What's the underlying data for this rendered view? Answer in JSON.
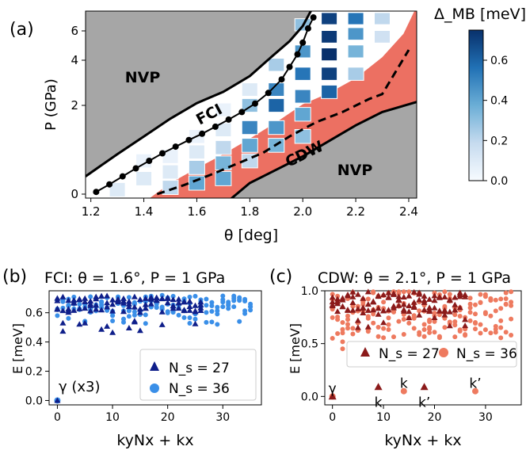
{
  "chart_data": [
    {
      "panel": "(a)",
      "type": "heatmap",
      "xlabel": "θ [deg]",
      "ylabel": "P (GPa)",
      "xlim": [
        1.18,
        2.43
      ],
      "x_ticks": [
        "1.2",
        "1.4",
        "1.6",
        "1.8",
        "2.0",
        "2.2",
        "2.4"
      ],
      "y_ticks": [
        "0",
        "2",
        "4",
        "6"
      ],
      "colorbar": {
        "label": "Δ_MB [meV]",
        "range": [
          0.0,
          0.75
        ],
        "ticks": [
          "0.0",
          "0.2",
          "0.4",
          "0.6"
        ],
        "colormap": "Blues"
      },
      "regions": [
        {
          "label": "NVP",
          "color": "#a6a6a6"
        },
        {
          "label": "FCI",
          "color": "#ffffff"
        },
        {
          "label": "CDW",
          "color": "#ec7062"
        },
        {
          "label": "NVP",
          "color": "#a6a6a6"
        }
      ],
      "fci_line": {
        "x": [
          1.22,
          1.27,
          1.32,
          1.37,
          1.42,
          1.47,
          1.52,
          1.57,
          1.62,
          1.67,
          1.72,
          1.77,
          1.82,
          1.87,
          1.92,
          1.95,
          1.98,
          2.0,
          2.02,
          2.04
        ],
        "y": [
          0.05,
          0.22,
          0.4,
          0.58,
          0.75,
          0.92,
          1.07,
          1.22,
          1.36,
          1.52,
          1.68,
          1.85,
          2.08,
          2.55,
          3.15,
          3.7,
          4.4,
          5.2,
          6.2,
          7.1
        ]
      },
      "cdw_dashed": {
        "x": [
          1.45,
          1.55,
          1.65,
          1.75,
          1.85,
          1.95,
          2.05,
          2.15,
          2.25,
          2.3,
          2.4
        ],
        "y": [
          0.0,
          0.2,
          0.43,
          0.68,
          0.93,
          1.3,
          1.62,
          1.85,
          2.28,
          2.5,
          4.7
        ]
      },
      "cells": [
        {
          "x": 1.3,
          "y": [
            0.1
          ],
          "v": [
            0.1
          ]
        },
        {
          "x": 1.4,
          "y": [
            0.35,
            0.75
          ],
          "v": [
            0.1,
            0.05
          ]
        },
        {
          "x": 1.5,
          "y": [
            0.15,
            0.5,
            0.85
          ],
          "v": [
            0.2,
            0.1,
            0.05
          ]
        },
        {
          "x": 1.6,
          "y": [
            0.25,
            0.6,
            0.95,
            1.3
          ],
          "v": [
            0.4,
            0.25,
            0.1,
            0.05
          ]
        },
        {
          "x": 1.7,
          "y": [
            0.35,
            0.7,
            1.05,
            1.45,
            1.9
          ],
          "v": [
            0.4,
            0.35,
            0.2,
            0.1,
            0.05
          ]
        },
        {
          "x": 1.8,
          "y": [
            0.75,
            1.1,
            1.5,
            2.0,
            2.7
          ],
          "v": [
            0.2,
            0.4,
            0.5,
            0.3,
            0.1
          ]
        },
        {
          "x": 1.9,
          "y": [
            1.1,
            1.5,
            2.0,
            2.7,
            3.8
          ],
          "v": [
            0.35,
            0.45,
            0.6,
            0.5,
            0.25
          ]
        },
        {
          "x": 2.0,
          "y": [
            1.3,
            1.8,
            2.4,
            3.4,
            4.6,
            6.5
          ],
          "v": [
            0.3,
            0.4,
            0.5,
            0.55,
            0.45,
            0.3
          ]
        },
        {
          "x": 2.1,
          "y": [
            2.6,
            3.4,
            4.4,
            5.6,
            7.0
          ],
          "v": [
            0.6,
            0.7,
            0.75,
            0.72,
            0.7
          ]
        },
        {
          "x": 2.2,
          "y": [
            3.4,
            4.6,
            5.8,
            7.0
          ],
          "v": [
            0.25,
            0.35,
            0.45,
            0.55
          ]
        },
        {
          "x": 2.3,
          "y": [
            5.6,
            7.0
          ],
          "v": [
            0.15,
            0.2
          ]
        }
      ]
    },
    {
      "panel": "(b)",
      "type": "scatter",
      "title": "FCI: θ = 1.6°, P = 1 GPa",
      "xlabel": "kyNx + kx",
      "ylabel": "E [meV]",
      "xlim": [
        -1.5,
        37
      ],
      "ylim": [
        -0.03,
        0.75
      ],
      "x_ticks": [
        "0",
        "10",
        "20",
        "30"
      ],
      "y_ticks": [
        "0.0",
        "0.2",
        "0.4",
        "0.6"
      ],
      "annotation": "γ (x3)",
      "legend": "bottom-right",
      "series": [
        {
          "name": "N_s = 27",
          "marker": "triangle",
          "color": "#0f1f8a",
          "points": "generated"
        },
        {
          "name": "N_s = 36",
          "marker": "circle",
          "color": "#3a8fe8",
          "points": "generated"
        }
      ]
    },
    {
      "panel": "(c)",
      "type": "scatter",
      "title": "CDW: θ = 2.1°, P = 1 GPa",
      "xlabel": "kyNx + kx",
      "ylabel": "E [meV]",
      "xlim": [
        -1.5,
        37
      ],
      "ylim": [
        -0.08,
        1.0
      ],
      "x_ticks": [
        "0",
        "10",
        "20",
        "30"
      ],
      "y_ticks": [
        "0.0",
        "0.5",
        "1.0"
      ],
      "legend": "middle-right",
      "labels": [
        {
          "text": "γ",
          "x": 0,
          "y": 0.07
        },
        {
          "text": "k",
          "x": 9,
          "y": -0.06
        },
        {
          "text": "k",
          "x": 14,
          "y": 0.12
        },
        {
          "text": "k’",
          "x": 18,
          "y": -0.06
        },
        {
          "text": "k’",
          "x": 28,
          "y": 0.12
        }
      ],
      "series": [
        {
          "name": "N_s = 27",
          "marker": "triangle",
          "color": "#8b1a1a",
          "low_points": {
            "x": [
              0,
              9,
              18
            ],
            "y": [
              0.0,
              0.09,
              0.09
            ]
          }
        },
        {
          "name": "N_s = 36",
          "marker": "circle",
          "color": "#ee7a5f",
          "low_points": {
            "x": [
              0,
              14,
              28
            ],
            "y": [
              0.0,
              0.05,
              0.05
            ]
          }
        }
      ]
    }
  ]
}
